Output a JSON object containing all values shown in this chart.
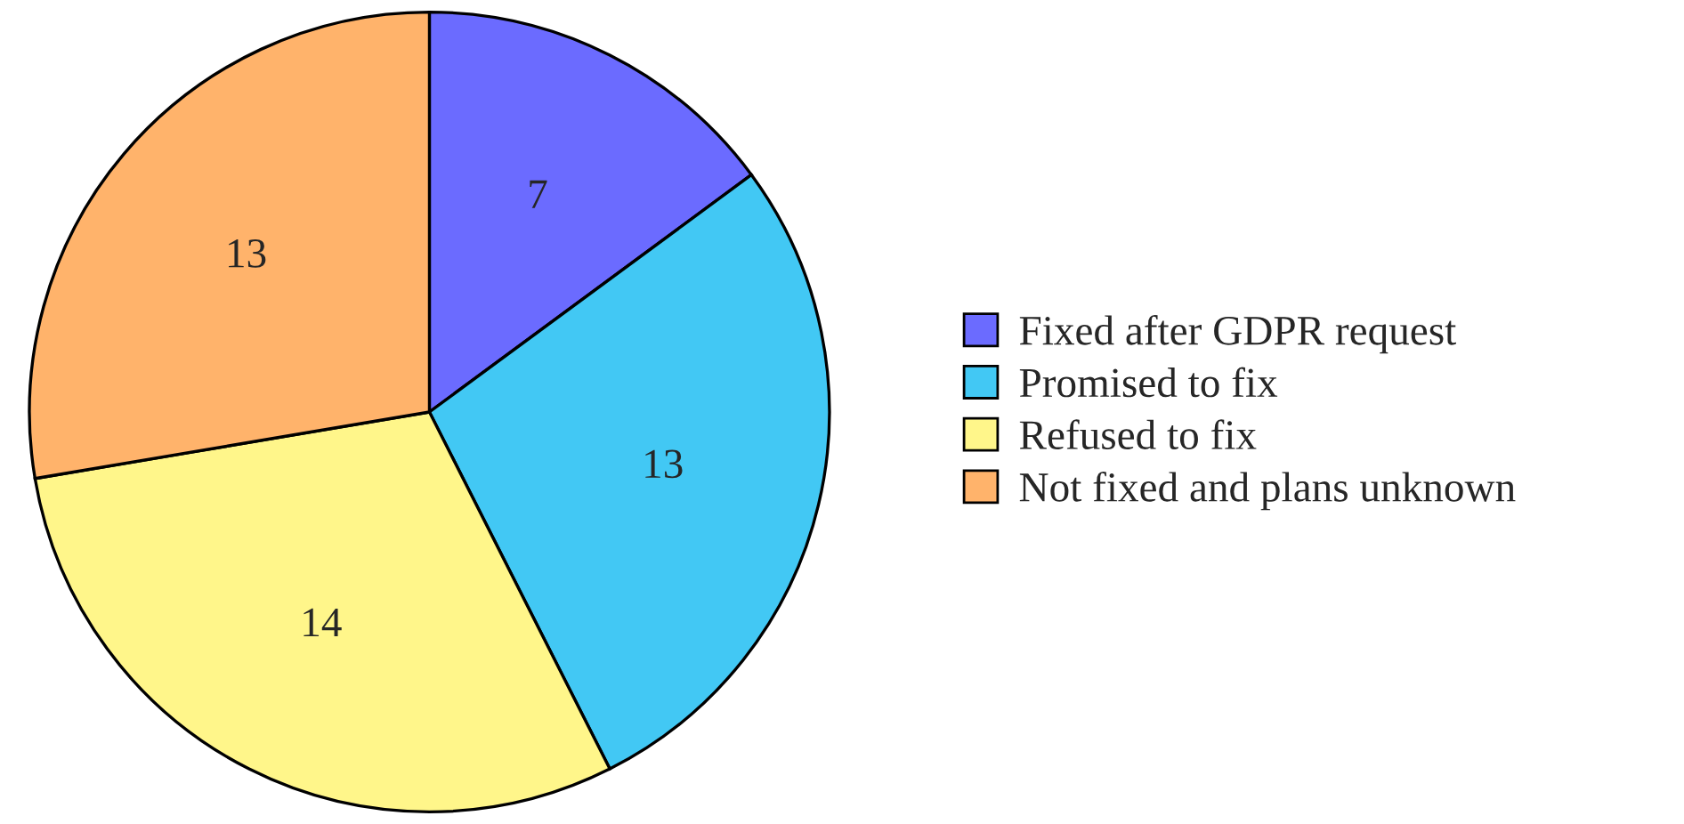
{
  "chart_data": {
    "type": "pie",
    "categories": [
      "Fixed after GDPR request",
      "Promised to fix",
      "Refused to fix",
      "Not fixed and plans unknown"
    ],
    "values": [
      7,
      13,
      14,
      13
    ],
    "colors": [
      "#6b6bff",
      "#42c8f4",
      "#fff68a",
      "#ffb36b"
    ],
    "data_labels": true,
    "legend": "right"
  }
}
